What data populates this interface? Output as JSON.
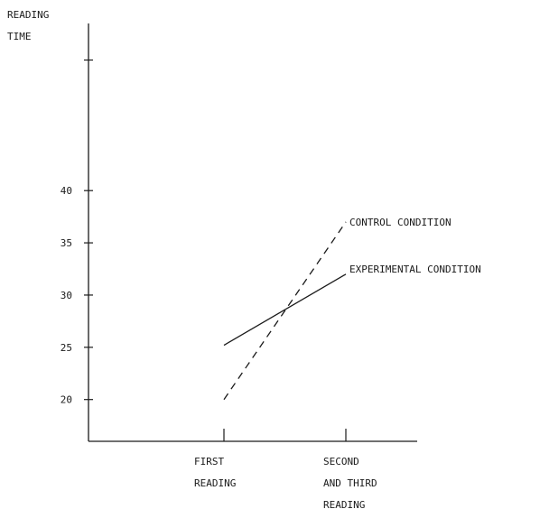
{
  "chart_data": {
    "type": "line",
    "title": "",
    "ylabel": [
      "READING",
      "TIME"
    ],
    "xlabel": "",
    "categories": [
      [
        "FIRST",
        "READING"
      ],
      [
        "SECOND",
        "AND THIRD",
        "READING"
      ]
    ],
    "yticks": [
      20,
      25,
      30,
      35,
      40
    ],
    "ylim": [
      16,
      56
    ],
    "grid": false,
    "legend": "direct labels at line ends",
    "series": [
      {
        "name": "CONTROL CONDITION",
        "values": [
          20,
          37
        ],
        "style": "dashed",
        "color": "#1a1a1a"
      },
      {
        "name": "EXPERIMENTAL CONDITION",
        "values": [
          25.2,
          32
        ],
        "style": "solid",
        "color": "#1a1a1a"
      }
    ]
  }
}
